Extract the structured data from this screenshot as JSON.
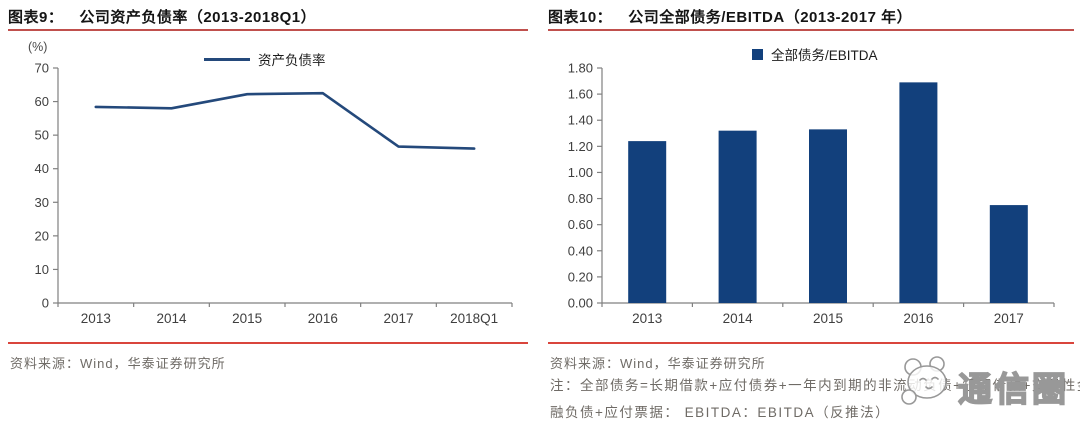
{
  "figures": [
    {
      "label": "图表9：",
      "title": "公司资产负债率（2013-2018Q1）",
      "unit": "(%)",
      "legend": "资产负债率",
      "source": "资料来源：Wind，华泰证券研究所"
    },
    {
      "label": "图表10：",
      "title": "公司全部债务/EBITDA（2013-2017 年）",
      "legend": "全部债务/EBITDA",
      "source": "资料来源：Wind，华泰证券研究所",
      "note_line1": "注：全部债务=长期借款+应付债券+一年内到期的非流动负债+短期借款+交易性金",
      "note_line2": "融负债+应付票据： EBITDA：EBITDA（反推法）"
    }
  ],
  "chart_data": [
    {
      "type": "line",
      "title": "公司资产负债率（2013-2018Q1）",
      "categories": [
        "2013",
        "2014",
        "2015",
        "2016",
        "2017",
        "2018Q1"
      ],
      "values": [
        58.4,
        58.0,
        62.2,
        62.5,
        46.6,
        46.0
      ],
      "ylabel": "(%)",
      "ylim": [
        0,
        70
      ],
      "yticks": [
        "70",
        "60",
        "50",
        "40",
        "30",
        "20",
        "10",
        "0"
      ],
      "legend": "资产负债率",
      "legend_position": "top",
      "grid": false
    },
    {
      "type": "bar",
      "title": "公司全部债务/EBITDA（2013-2017 年）",
      "categories": [
        "2013",
        "2014",
        "2015",
        "2016",
        "2017"
      ],
      "values": [
        1.24,
        1.32,
        1.33,
        1.69,
        0.75
      ],
      "ylim": [
        0,
        1.8
      ],
      "yticks": [
        "1.80",
        "1.60",
        "1.40",
        "1.20",
        "1.00",
        "0.80",
        "0.60",
        "0.40",
        "0.20",
        "0.00"
      ],
      "legend": "全部债务/EBITDA",
      "legend_position": "top",
      "grid": false
    }
  ],
  "watermark": {
    "text": "通信圈"
  },
  "colors": {
    "bar_navy": "#12407c",
    "line_navy": "#24497b",
    "title_rule_red": "#c0504d",
    "separator_red": "#d9453c",
    "axis_grey": "#808080"
  }
}
